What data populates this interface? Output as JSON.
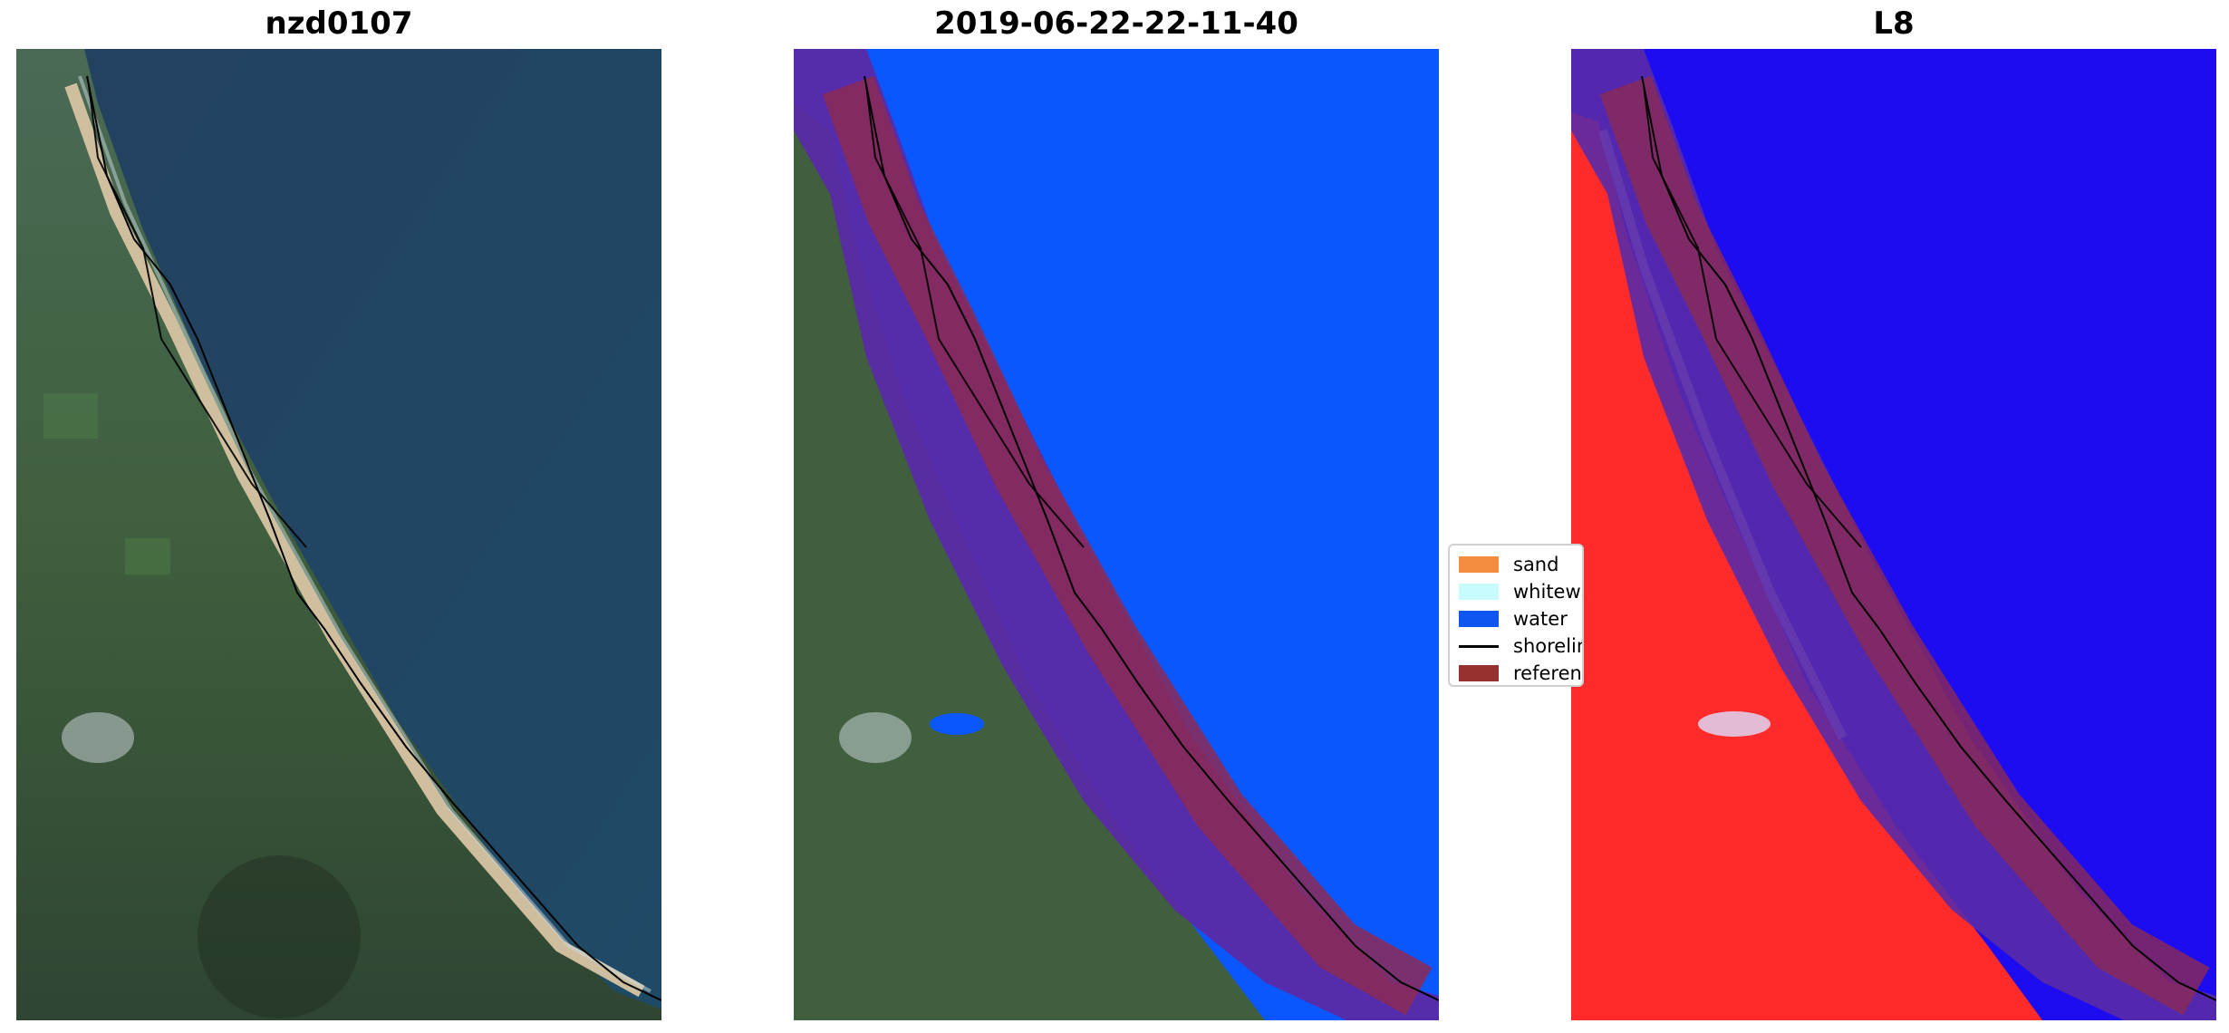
{
  "panels": [
    {
      "title": "nzd0107"
    },
    {
      "title": "2019-06-22-22-11-40"
    },
    {
      "title": "L8"
    }
  ],
  "legend": {
    "items": [
      {
        "label": "sand",
        "color": "#f58d3f"
      },
      {
        "label": "whitewater",
        "color": "#c8fbfb"
      },
      {
        "label": "water",
        "color": "#0f56f0"
      },
      {
        "label": "shoreline",
        "color": "#000000"
      },
      {
        "label": "reference",
        "color": "#96312f"
      }
    ]
  },
  "colors": {
    "ocean": "#1d3f5e",
    "land": "#3c5a3f",
    "sand": "#d6c1a1",
    "water_class": "#0a57ff",
    "buffer": "#5e2aa8",
    "mndwi_land": "#ff2a2a",
    "mndwi_water": "#1d0cf0"
  }
}
